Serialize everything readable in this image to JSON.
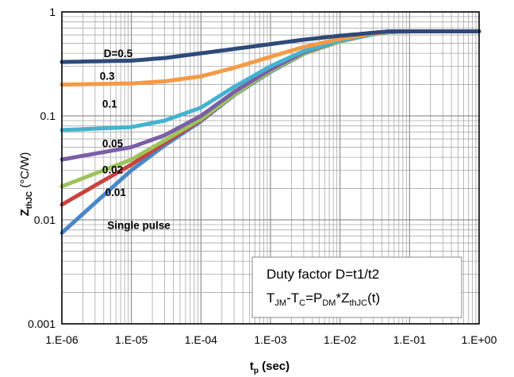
{
  "chart_data": {
    "type": "line",
    "title": "",
    "xscale": "log",
    "yscale": "log",
    "xlim": [
      1e-06,
      1
    ],
    "ylim": [
      0.001,
      1
    ],
    "grid": true,
    "x_ticks": [
      "1.E-06",
      "1.E-05",
      "1.E-04",
      "1.E-03",
      "1.E-02",
      "1.E-01",
      "1.E+00"
    ],
    "y_ticks": [
      "0.001",
      "0.01",
      "0.1",
      "1"
    ],
    "xlabel": {
      "main": "t",
      "sub": "p",
      "unit": " (sec)"
    },
    "ylabel": {
      "main": "Z",
      "sub": "thJC",
      "unit": " (°C/W)"
    },
    "annotation": {
      "line1": "Duty factor D=t1/t2",
      "line2": [
        {
          "t": "T",
          "sub": false
        },
        {
          "t": "JM",
          "sub": true
        },
        {
          "t": "-T",
          "sub": false
        },
        {
          "t": "C",
          "sub": true
        },
        {
          "t": "=P",
          "sub": false
        },
        {
          "t": "DM",
          "sub": true
        },
        {
          "t": "*Z",
          "sub": false
        },
        {
          "t": "thJC",
          "sub": true
        },
        {
          "t": "(t)",
          "sub": false
        }
      ]
    },
    "series": [
      {
        "name": "D=0.5",
        "color": "#2e4a7a",
        "x": [
          1e-06,
          1e-05,
          3e-05,
          0.0001,
          0.0003,
          0.001,
          0.003,
          0.01,
          0.03,
          0.05,
          0.1,
          0.3,
          1
        ],
        "y": [
          0.33,
          0.34,
          0.36,
          0.4,
          0.44,
          0.49,
          0.54,
          0.59,
          0.63,
          0.65,
          0.65,
          0.65,
          0.65
        ]
      },
      {
        "name": "0.3",
        "color": "#f59a45",
        "x": [
          1e-06,
          1e-05,
          3e-05,
          0.0001,
          0.0003,
          0.001,
          0.003,
          0.01,
          0.03,
          0.05,
          0.1,
          0.3,
          1
        ],
        "y": [
          0.2,
          0.205,
          0.215,
          0.24,
          0.29,
          0.37,
          0.46,
          0.55,
          0.62,
          0.645,
          0.65,
          0.65,
          0.65
        ]
      },
      {
        "name": "0.1",
        "color": "#45b3cf",
        "x": [
          1e-06,
          1e-05,
          3e-05,
          0.0001,
          0.0003,
          0.001,
          0.003,
          0.01,
          0.03,
          0.05,
          0.1,
          0.3,
          1
        ],
        "y": [
          0.073,
          0.078,
          0.09,
          0.12,
          0.19,
          0.3,
          0.42,
          0.53,
          0.61,
          0.64,
          0.65,
          0.65,
          0.65
        ]
      },
      {
        "name": "0.05",
        "color": "#7b5ea8",
        "x": [
          1e-06,
          1e-05,
          3e-05,
          0.0001,
          0.0003,
          0.001,
          0.003,
          0.01,
          0.03,
          0.05,
          0.1,
          0.3,
          1
        ],
        "y": [
          0.038,
          0.05,
          0.065,
          0.1,
          0.17,
          0.28,
          0.41,
          0.53,
          0.61,
          0.64,
          0.65,
          0.65,
          0.65
        ]
      },
      {
        "name": "0.02",
        "color": "#9dc35c",
        "x": [
          1e-06,
          1e-05,
          3e-05,
          0.0001,
          0.0003,
          0.001,
          0.003,
          0.01,
          0.03,
          0.05,
          0.1,
          0.3,
          1
        ],
        "y": [
          0.021,
          0.038,
          0.058,
          0.093,
          0.16,
          0.27,
          0.4,
          0.52,
          0.61,
          0.64,
          0.65,
          0.65,
          0.65
        ]
      },
      {
        "name": "0.01",
        "color": "#c8433f",
        "x": [
          1e-06,
          1e-05,
          3e-05,
          0.0001,
          0.0003,
          0.001,
          0.003,
          0.01,
          0.03,
          0.05,
          0.1,
          0.3,
          1
        ],
        "y": [
          0.014,
          0.034,
          0.055,
          0.091,
          0.16,
          0.27,
          0.4,
          0.52,
          0.61,
          0.64,
          0.65,
          0.65,
          0.65
        ]
      },
      {
        "name": "Single pulse",
        "color": "#4a86c8",
        "x": [
          1e-06,
          1e-05,
          3e-05,
          0.0001,
          0.0003,
          0.001,
          0.003,
          0.01,
          0.03,
          0.05,
          0.1,
          0.3,
          1
        ],
        "y": [
          0.0075,
          0.03,
          0.052,
          0.089,
          0.158,
          0.265,
          0.395,
          0.52,
          0.61,
          0.64,
          0.65,
          0.65,
          0.65
        ]
      }
    ]
  }
}
